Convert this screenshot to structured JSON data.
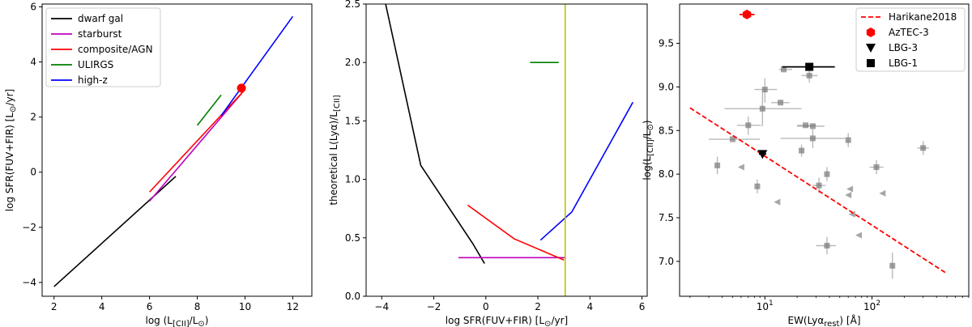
{
  "chart_data": [
    {
      "type": "line",
      "xlabel_parts": [
        "log (L",
        "[CII]",
        "/L",
        "⊙",
        ")"
      ],
      "ylabel_parts": [
        "log SFR(FUV+FIR) [L",
        "⊙",
        "/yr]"
      ],
      "xlim": [
        1.5,
        12.8
      ],
      "ylim": [
        -4.5,
        6.1
      ],
      "xticks": [
        2,
        4,
        6,
        8,
        10,
        12
      ],
      "yticks": [
        -4,
        -2,
        0,
        2,
        4,
        6
      ],
      "legend_position": "top-left",
      "series": [
        {
          "name": "dwarf gal",
          "color": "#000000",
          "points": [
            [
              2.0,
              -4.15
            ],
            [
              7.1,
              -0.15
            ]
          ]
        },
        {
          "name": "starburst",
          "color": "#bf00bf",
          "points": [
            [
              6.0,
              -1.05
            ],
            [
              9.85,
              2.85
            ]
          ]
        },
        {
          "name": "composite/AGN",
          "color": "#ff0000",
          "points": [
            [
              6.0,
              -0.72
            ],
            [
              9.95,
              2.95
            ]
          ]
        },
        {
          "name": "ULIRGS",
          "color": "#008000",
          "points": [
            [
              8.0,
              1.7
            ],
            [
              9.0,
              2.8
            ]
          ]
        },
        {
          "name": "high-z",
          "color": "#0000ff",
          "points": [
            [
              9.0,
              2.05
            ],
            [
              12.0,
              5.65
            ]
          ]
        }
      ],
      "marker": {
        "color": "#ff0000",
        "x": 9.85,
        "y": 3.05
      }
    },
    {
      "type": "line",
      "xlabel_parts": [
        "log SFR(FUV+FIR) [L",
        "⊙",
        "/yr]"
      ],
      "ylabel_parts": [
        "theoretical L(Lyα)/L",
        "[CII]"
      ],
      "xlim": [
        -4.6,
        6.2
      ],
      "ylim": [
        0.0,
        2.5
      ],
      "xticks": [
        -4,
        -2,
        0,
        2,
        4,
        6
      ],
      "yticks": [
        0.0,
        0.5,
        1.0,
        1.5,
        2.0,
        2.5
      ],
      "series": [
        {
          "color": "#000000",
          "points": [
            [
              -3.85,
              2.5
            ],
            [
              -2.5,
              1.12
            ],
            [
              -0.5,
              0.45
            ],
            [
              -0.05,
              0.28
            ]
          ]
        },
        {
          "color": "#bf00bf",
          "points": [
            [
              -1.05,
              0.33
            ],
            [
              3.05,
              0.33
            ]
          ]
        },
        {
          "color": "#ff0000",
          "points": [
            [
              -0.7,
              0.78
            ],
            [
              1.1,
              0.49
            ],
            [
              3.0,
              0.31
            ]
          ]
        },
        {
          "color": "#008000",
          "points": [
            [
              1.7,
              2.0
            ],
            [
              2.8,
              2.0
            ]
          ]
        },
        {
          "color": "#0000ff",
          "points": [
            [
              2.1,
              0.48
            ],
            [
              3.3,
              0.72
            ],
            [
              5.65,
              1.66
            ]
          ]
        }
      ],
      "vline": {
        "color": "#bfbf00",
        "x": 3.05
      }
    },
    {
      "type": "scatter",
      "xlabel_parts": [
        "EW(Ly",
        "α",
        "rest",
        ") [",
        "Å",
        "]"
      ],
      "ylabel_parts": [
        "log(L",
        "[CII]",
        "/L",
        "⊙",
        ")"
      ],
      "xscale": "log",
      "xlim": [
        1.6,
        800
      ],
      "ylim": [
        6.6,
        9.95
      ],
      "xticks": [
        10,
        100
      ],
      "xtick_labels": [
        [
          "10",
          "1"
        ],
        [
          "10",
          "2"
        ]
      ],
      "yticks": [
        7.0,
        7.5,
        8.0,
        8.5,
        9.0,
        9.5
      ],
      "legend_position": "top-right",
      "legend": [
        {
          "name": "Harikane2018",
          "kind": "dashed-line",
          "color": "#ff0000"
        },
        {
          "name": "AzTEC-3",
          "kind": "hexagon",
          "color": "#ff0000"
        },
        {
          "name": "LBG-3",
          "kind": "triangle-down",
          "color": "#000000"
        },
        {
          "name": "LBG-1",
          "kind": "square",
          "color": "#000000"
        }
      ],
      "fit_line": {
        "color": "#ff0000",
        "points": [
          [
            2.0,
            8.76
          ],
          [
            500,
            6.86
          ]
        ]
      },
      "highlight_points": [
        {
          "name": "AzTEC-3",
          "x": 6.8,
          "y": 9.83,
          "xerr": [
            5.8,
            8.0
          ],
          "color": "#ff0000",
          "marker": "hexagon"
        },
        {
          "name": "LBG-3",
          "x": 9.5,
          "y": 8.23,
          "xerr": [
            8.8,
            10.3
          ],
          "color": "#000000",
          "marker": "triangle-down"
        },
        {
          "name": "LBG-1",
          "x": 26.0,
          "y": 9.23,
          "xerr": [
            14.5,
            45.0
          ],
          "color": "#000000",
          "marker": "square"
        }
      ],
      "gray_points": [
        {
          "x": 3.6,
          "y": 8.1,
          "yerr": [
            8.0,
            8.2
          ]
        },
        {
          "x": 5.0,
          "y": 8.4,
          "xerr": [
            3.0,
            9.0
          ]
        },
        {
          "x": 7.0,
          "y": 8.56,
          "xerr": [
            5.5,
            9.2
          ],
          "yerr": [
            8.45,
            8.66
          ]
        },
        {
          "x": 8.5,
          "y": 7.86,
          "yerr": [
            7.78,
            7.94
          ]
        },
        {
          "x": 9.5,
          "y": 8.75,
          "xerr": [
            4.2,
            22.0
          ],
          "yerr": [
            8.55,
            8.95
          ]
        },
        {
          "x": 10.0,
          "y": 8.97,
          "xerr": [
            8.0,
            13.0
          ],
          "yerr": [
            8.82,
            9.1
          ]
        },
        {
          "x": 14.0,
          "y": 8.82,
          "xerr": [
            11.5,
            17.0
          ]
        },
        {
          "x": 15.0,
          "y": 9.2,
          "xerr": [
            13.5,
            18.0
          ]
        },
        {
          "x": 22.0,
          "y": 8.27,
          "yerr": [
            8.2,
            8.34
          ]
        },
        {
          "x": 24.0,
          "y": 8.56,
          "xerr": [
            20.0,
            30.0
          ]
        },
        {
          "x": 26.0,
          "y": 9.13,
          "xerr": [
            22.0,
            31.0
          ],
          "yerr": [
            9.05,
            9.21
          ]
        },
        {
          "x": 28.0,
          "y": 8.55,
          "xerr": [
            20.0,
            36.0
          ]
        },
        {
          "x": 28.0,
          "y": 8.41,
          "xerr": [
            14.0,
            56.0
          ],
          "yerr": [
            8.3,
            8.52
          ]
        },
        {
          "x": 32.0,
          "y": 7.87,
          "xerr": [
            28.0,
            37.0
          ],
          "yerr": [
            7.78,
            7.96
          ]
        },
        {
          "x": 38.0,
          "y": 8.0,
          "yerr": [
            7.92,
            8.08
          ]
        },
        {
          "x": 38.0,
          "y": 7.18,
          "xerr": [
            30.0,
            46.0
          ],
          "yerr": [
            7.08,
            7.28
          ]
        },
        {
          "x": 60.0,
          "y": 8.39,
          "yerr": [
            8.31,
            8.47
          ]
        },
        {
          "x": 110.0,
          "y": 8.08,
          "xerr": [
            95.0,
            128.0
          ],
          "yerr": [
            8.0,
            8.16
          ]
        },
        {
          "x": 155.0,
          "y": 6.95,
          "yerr": [
            6.8,
            7.1
          ]
        },
        {
          "x": 300.0,
          "y": 8.3,
          "xerr": [
            265.0,
            340.0
          ],
          "yerr": [
            8.22,
            8.38
          ]
        }
      ],
      "gray_triangles": [
        {
          "x": 6.0,
          "y": 8.08
        },
        {
          "x": 13.0,
          "y": 7.68
        },
        {
          "x": 62.0,
          "y": 7.83
        },
        {
          "x": 60.0,
          "y": 7.76
        },
        {
          "x": 65.0,
          "y": 7.54
        },
        {
          "x": 75.0,
          "y": 7.3
        },
        {
          "x": 125.0,
          "y": 7.78
        }
      ]
    }
  ]
}
